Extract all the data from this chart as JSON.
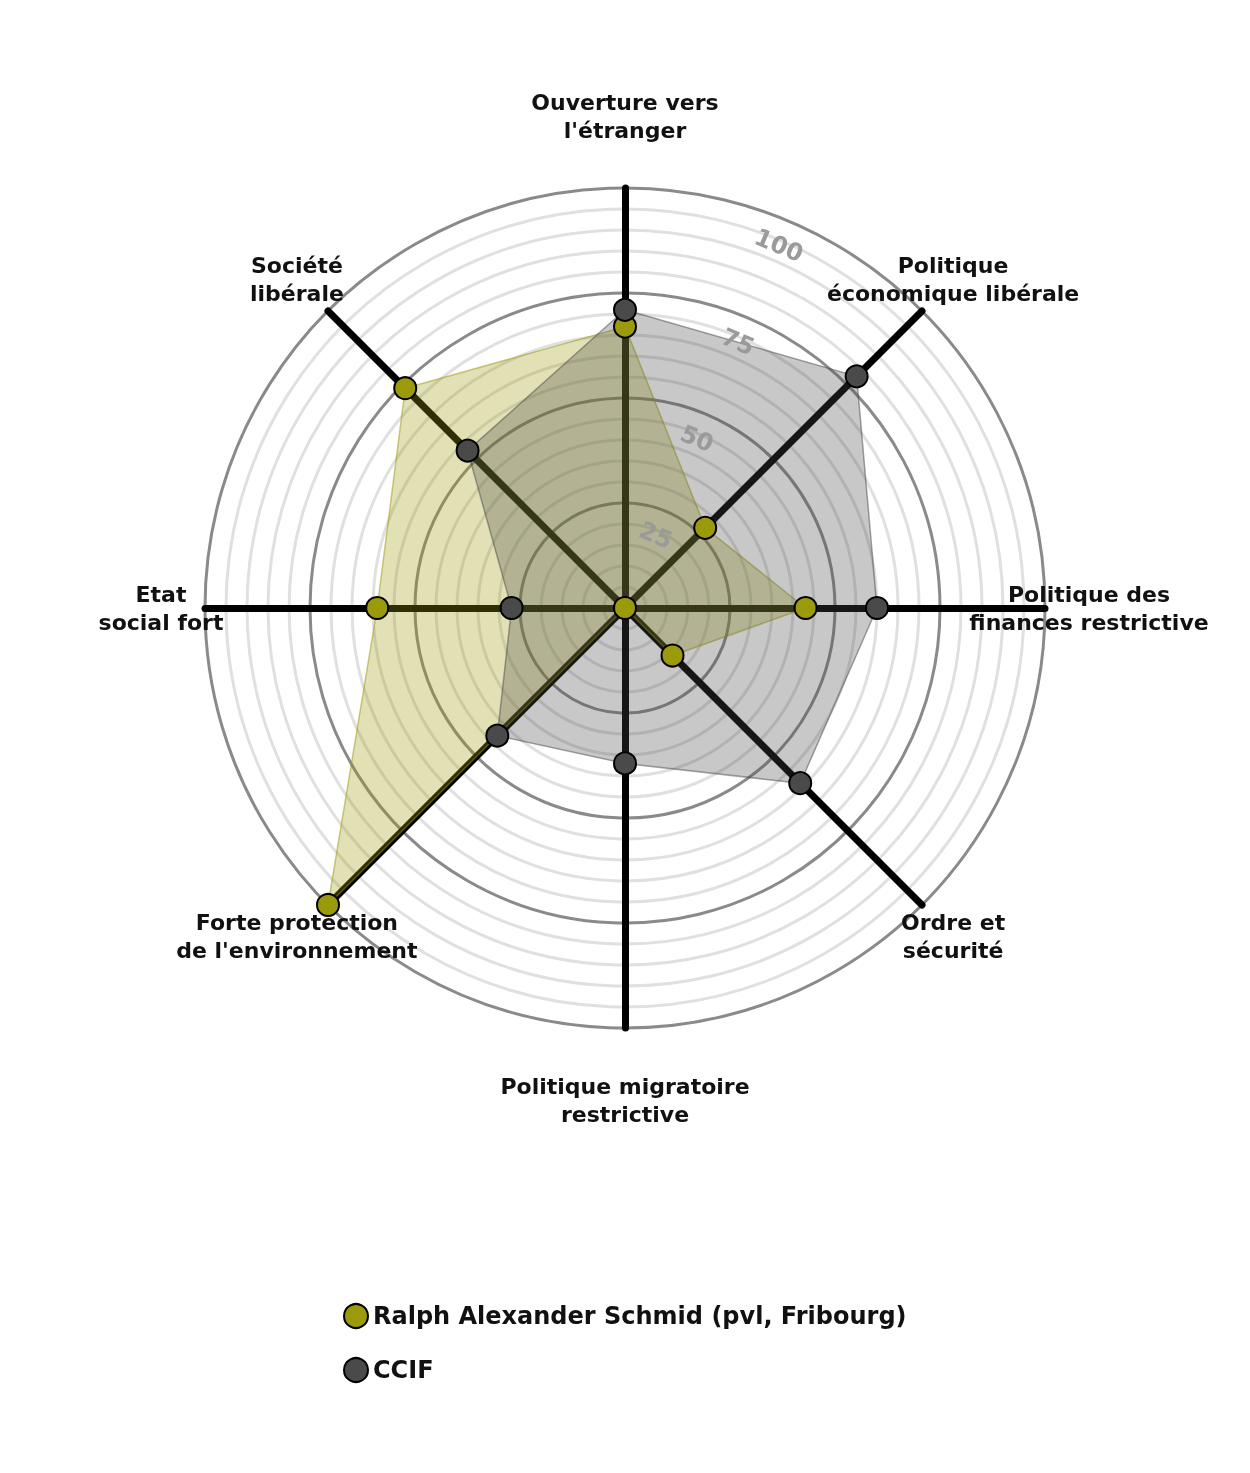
{
  "chart_data": {
    "type": "radar",
    "categories": [
      "Ouverture vers l'étranger",
      "Politique économique libérale",
      "Politique des finances restrictive",
      "Ordre et sécurité",
      "Politique migratoire restrictive",
      "Forte protection de l'environnement",
      "Etat social fort",
      "Société libérale"
    ],
    "series": [
      {
        "name": "Ralph Alexander Schmid (pvl, Fribourg)",
        "color": "#9a9a0a",
        "values": [
          67,
          27,
          43,
          16,
          0,
          100,
          59,
          74
        ]
      },
      {
        "name": "CCIF",
        "color": "#4a4a4a",
        "values": [
          71,
          78,
          60,
          59,
          37,
          43,
          27,
          53
        ]
      }
    ],
    "ylim": [
      0,
      100
    ],
    "yticks": [
      25,
      50,
      75,
      100
    ],
    "grid": true,
    "legend": "bottom",
    "marker": "circle"
  }
}
